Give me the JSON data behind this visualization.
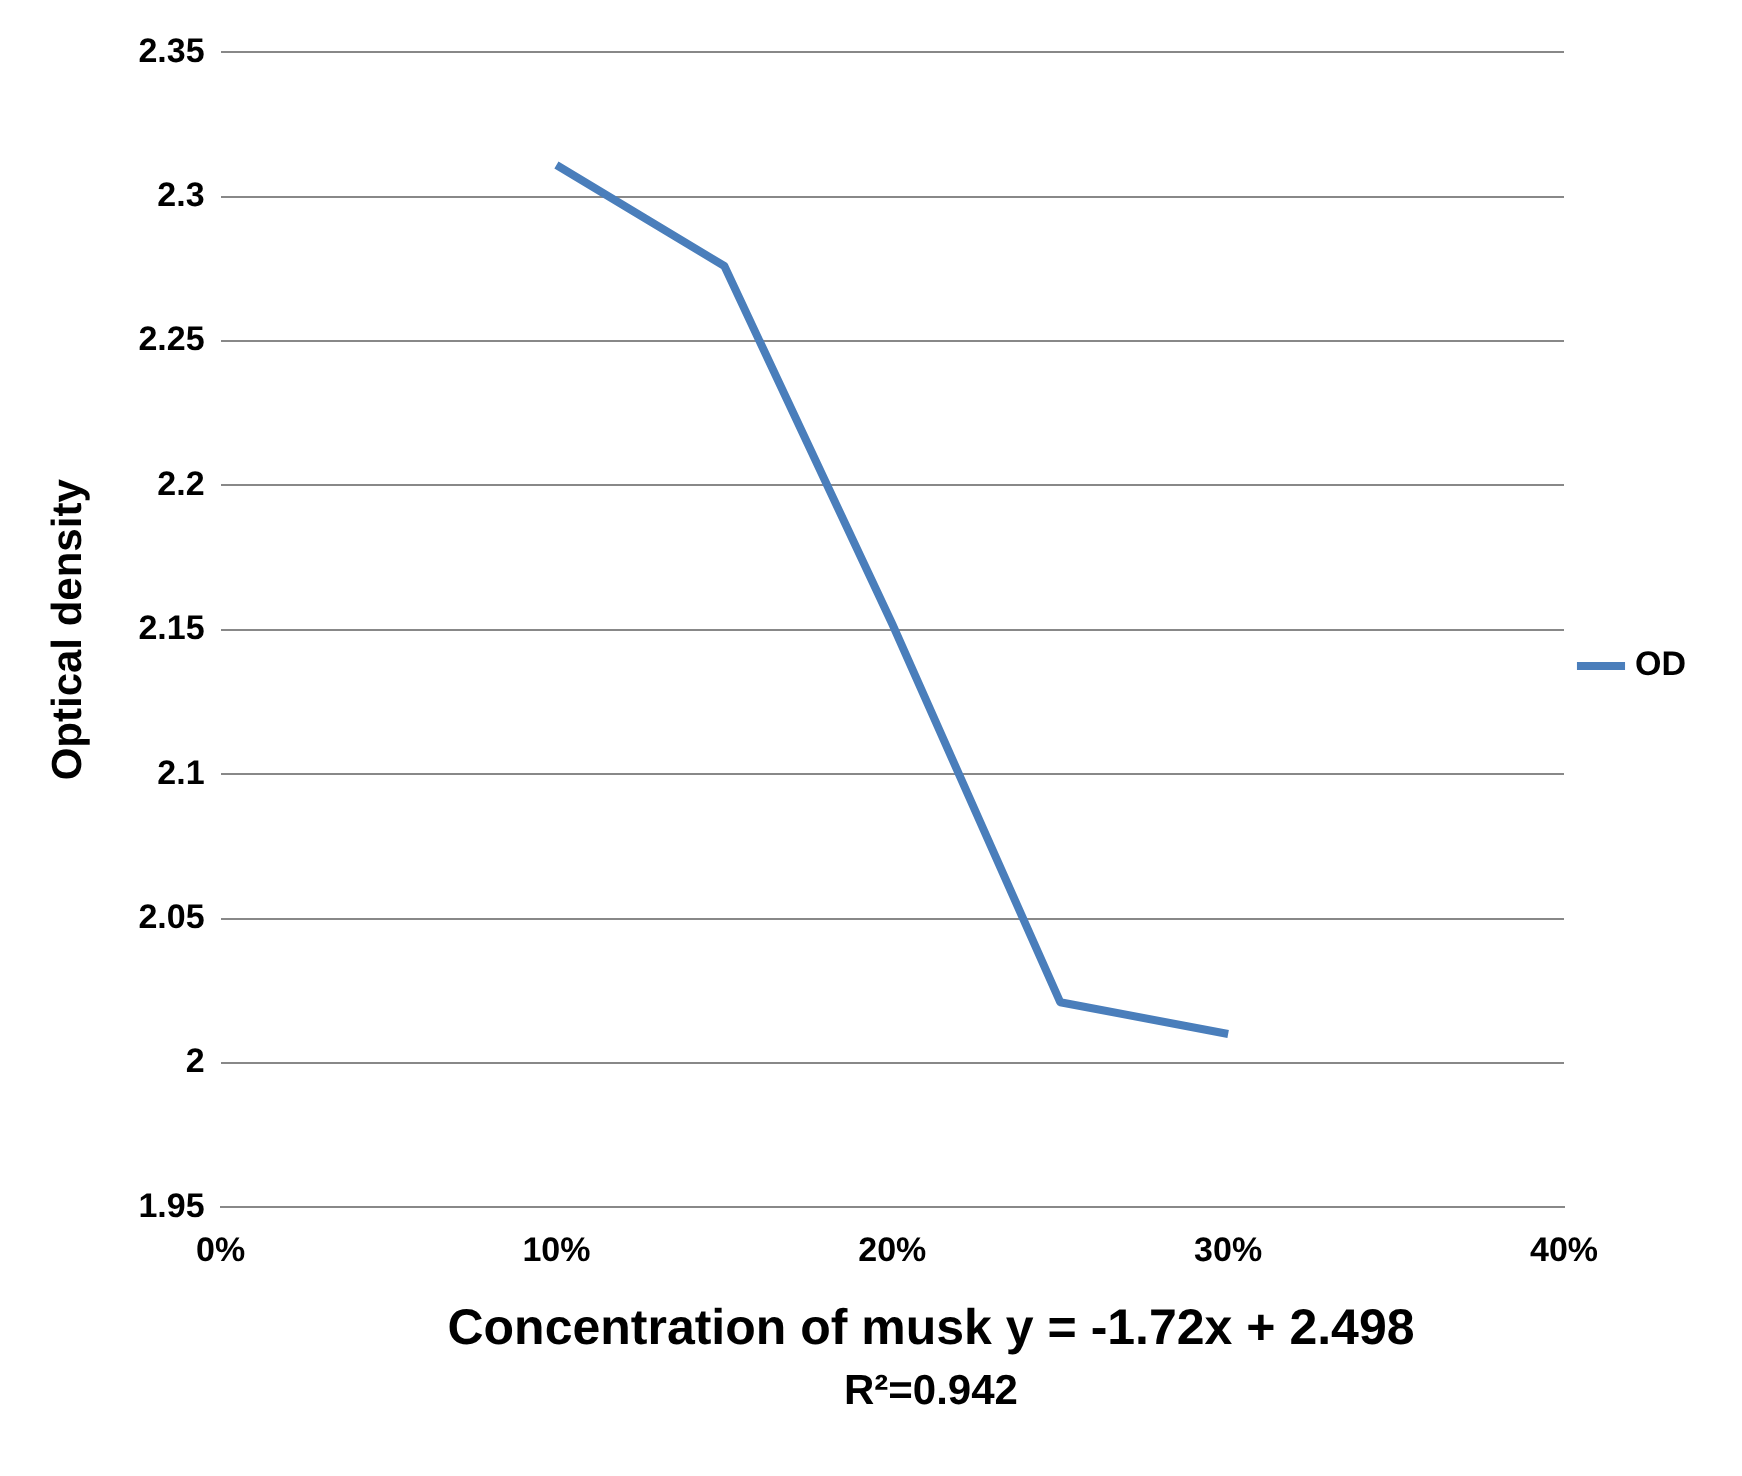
{
  "chart_data": {
    "type": "line",
    "xlabel": "Concentration of musk",
    "ylabel": "Optical density",
    "x": [
      10,
      15,
      20,
      25,
      30
    ],
    "series": [
      {
        "name": "OD",
        "color": "#4a7ebb",
        "values": [
          2.311,
          2.276,
          2.152,
          2.021,
          2.01
        ]
      }
    ],
    "xlim": [
      0,
      40
    ],
    "xticks": [
      {
        "value": 0,
        "label": "0%"
      },
      {
        "value": 10,
        "label": "10%"
      },
      {
        "value": 20,
        "label": "20%"
      },
      {
        "value": 30,
        "label": "30%"
      },
      {
        "value": 40,
        "label": "40%"
      }
    ],
    "ylim": [
      1.95,
      2.35
    ],
    "yticks": [
      1.95,
      2,
      2.05,
      2.1,
      2.15,
      2.2,
      2.25,
      2.3,
      2.35
    ],
    "grid": "y",
    "legend": "right",
    "marker": "none",
    "line_style": "solid",
    "annotations": [
      "y = -1.72x + 2.498",
      "R²=0.942"
    ]
  }
}
